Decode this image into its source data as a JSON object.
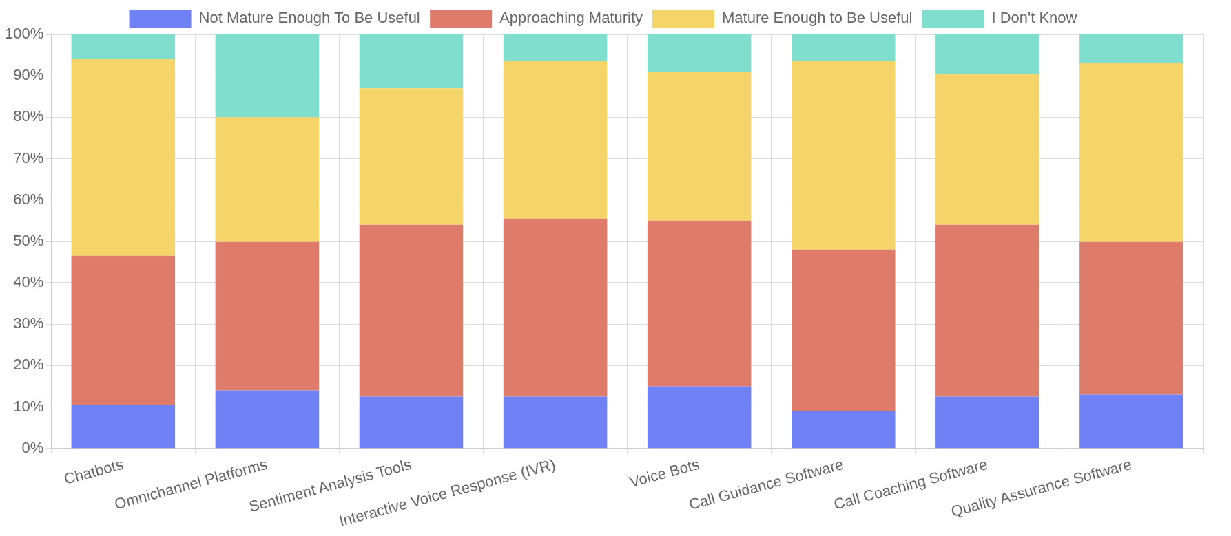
{
  "chart_data": {
    "type": "bar",
    "stacked": true,
    "categories": [
      "Chatbots",
      "Omnichannel Platforms",
      "Sentiment Analysis Tools",
      "Interactive Voice Response (IVR)",
      "Voice Bots",
      "Call Guidance Software",
      "Call Coaching Software",
      "Quality Assurance Software"
    ],
    "series": [
      {
        "name": "Not Mature Enough To Be Useful",
        "color": "#7080f5",
        "values": [
          10.5,
          14,
          12.5,
          12.5,
          15,
          9,
          12.5,
          13
        ]
      },
      {
        "name": "Approaching Maturity",
        "color": "#de7b6b",
        "values": [
          36,
          36,
          41.5,
          43,
          40,
          39,
          41.5,
          37
        ]
      },
      {
        "name": "Mature Enough to Be Useful",
        "color": "#f5d46a",
        "values": [
          47.5,
          30,
          33,
          38,
          36,
          45.5,
          36.5,
          43
        ]
      },
      {
        "name": "I Don't Know",
        "color": "#80dece",
        "values": [
          6,
          20,
          13,
          6.5,
          9,
          6.5,
          9.5,
          7
        ]
      }
    ],
    "ylim": [
      0,
      100
    ],
    "yticks": [
      {
        "value": 0,
        "label": "0%"
      },
      {
        "value": 10,
        "label": "10%"
      },
      {
        "value": 20,
        "label": "20%"
      },
      {
        "value": 30,
        "label": "30%"
      },
      {
        "value": 40,
        "label": "40%"
      },
      {
        "value": 50,
        "label": "50%"
      },
      {
        "value": 60,
        "label": "60%"
      },
      {
        "value": 70,
        "label": "70%"
      },
      {
        "value": 80,
        "label": "80%"
      },
      {
        "value": 90,
        "label": "90%"
      },
      {
        "value": 100,
        "label": "100%"
      }
    ],
    "grid": true,
    "legend": "top"
  }
}
